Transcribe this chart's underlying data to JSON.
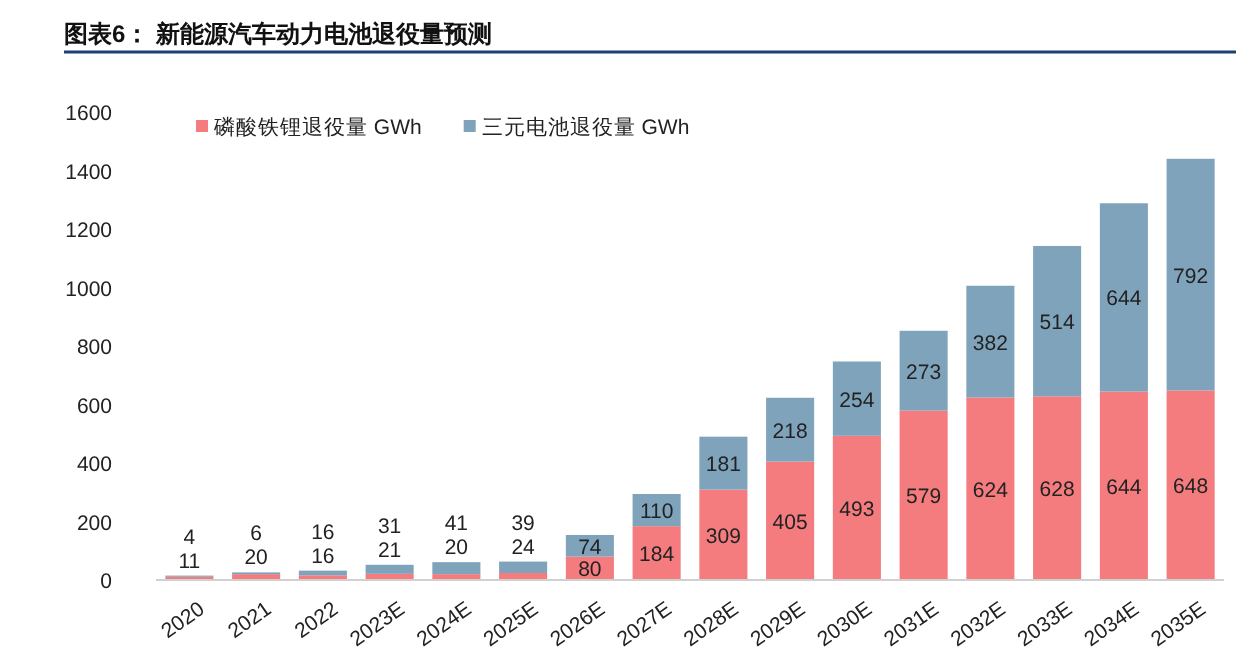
{
  "chart_data": {
    "type": "bar",
    "stacked": true,
    "title": "图表6：  新能源汽车动力电池退役量预测",
    "categories": [
      "2020",
      "2021",
      "2022",
      "2023E",
      "2024E",
      "2025E",
      "2026E",
      "2027E",
      "2028E",
      "2029E",
      "2030E",
      "2031E",
      "2032E",
      "2033E",
      "2034E",
      "2035E"
    ],
    "series": [
      {
        "name": "磷酸铁锂退役量 GWh",
        "color": "#f47c7e",
        "values": [
          11,
          20,
          16,
          21,
          20,
          24,
          80,
          184,
          309,
          405,
          493,
          579,
          624,
          628,
          644,
          648
        ]
      },
      {
        "name": "三元电池退役量 GWh",
        "color": "#7fa3bb",
        "values": [
          4,
          6,
          16,
          31,
          41,
          39,
          74,
          110,
          181,
          218,
          254,
          273,
          382,
          514,
          644,
          792
        ]
      }
    ],
    "ylim": [
      0,
      1600
    ],
    "yticks": [
      0,
      200,
      400,
      600,
      800,
      1000,
      1200,
      1400,
      1600
    ],
    "data_labels": true,
    "legend": "top left",
    "grid": false
  }
}
